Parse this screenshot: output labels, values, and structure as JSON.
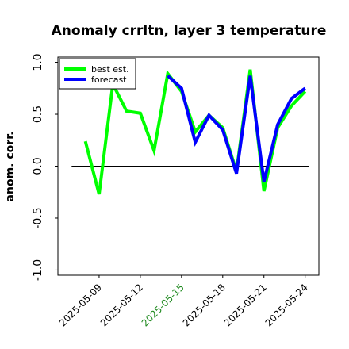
{
  "chart_data": {
    "type": "line",
    "title": "Anomaly crrltn, layer 3 temperature",
    "ylabel": "anom. corr.",
    "xlabel": "",
    "ylim": [
      -1.05,
      1.05
    ],
    "yticks": [
      -1.0,
      -0.5,
      0.0,
      0.5,
      1.0
    ],
    "ytick_labels": [
      "-1.0",
      "-0.5",
      "0.0",
      "0.5",
      "1.0"
    ],
    "xlim": [
      "2025-05-06",
      "2025-05-25"
    ],
    "xticks": [
      "2025-05-09",
      "2025-05-12",
      "2025-05-15",
      "2025-05-18",
      "2025-05-21",
      "2025-05-24"
    ],
    "highlight_tick": "2025-05-15",
    "highlight_color": "#228b22",
    "reference_line": 0.0,
    "grid": false,
    "legend_position": "top-left",
    "series": [
      {
        "name": "best est.",
        "color": "#00ff00",
        "x": [
          "2025-05-08",
          "2025-05-09",
          "2025-05-10",
          "2025-05-11",
          "2025-05-12",
          "2025-05-13",
          "2025-05-14",
          "2025-05-15",
          "2025-05-16",
          "2025-05-17",
          "2025-05-18",
          "2025-05-19",
          "2025-05-20",
          "2025-05-21",
          "2025-05-22",
          "2025-05-23",
          "2025-05-24"
        ],
        "values": [
          0.24,
          -0.27,
          0.79,
          0.53,
          0.51,
          0.15,
          0.89,
          0.72,
          0.33,
          0.49,
          0.37,
          -0.05,
          0.93,
          -0.24,
          0.37,
          0.58,
          0.72
        ]
      },
      {
        "name": "forecast",
        "color": "#0000ff",
        "x": [
          "2025-05-14",
          "2025-05-15",
          "2025-05-16",
          "2025-05-17",
          "2025-05-18",
          "2025-05-19",
          "2025-05-20",
          "2025-05-21",
          "2025-05-22",
          "2025-05-23",
          "2025-05-24"
        ],
        "values": [
          0.87,
          0.75,
          0.23,
          0.49,
          0.35,
          -0.07,
          0.87,
          -0.15,
          0.4,
          0.65,
          0.75
        ]
      }
    ]
  }
}
